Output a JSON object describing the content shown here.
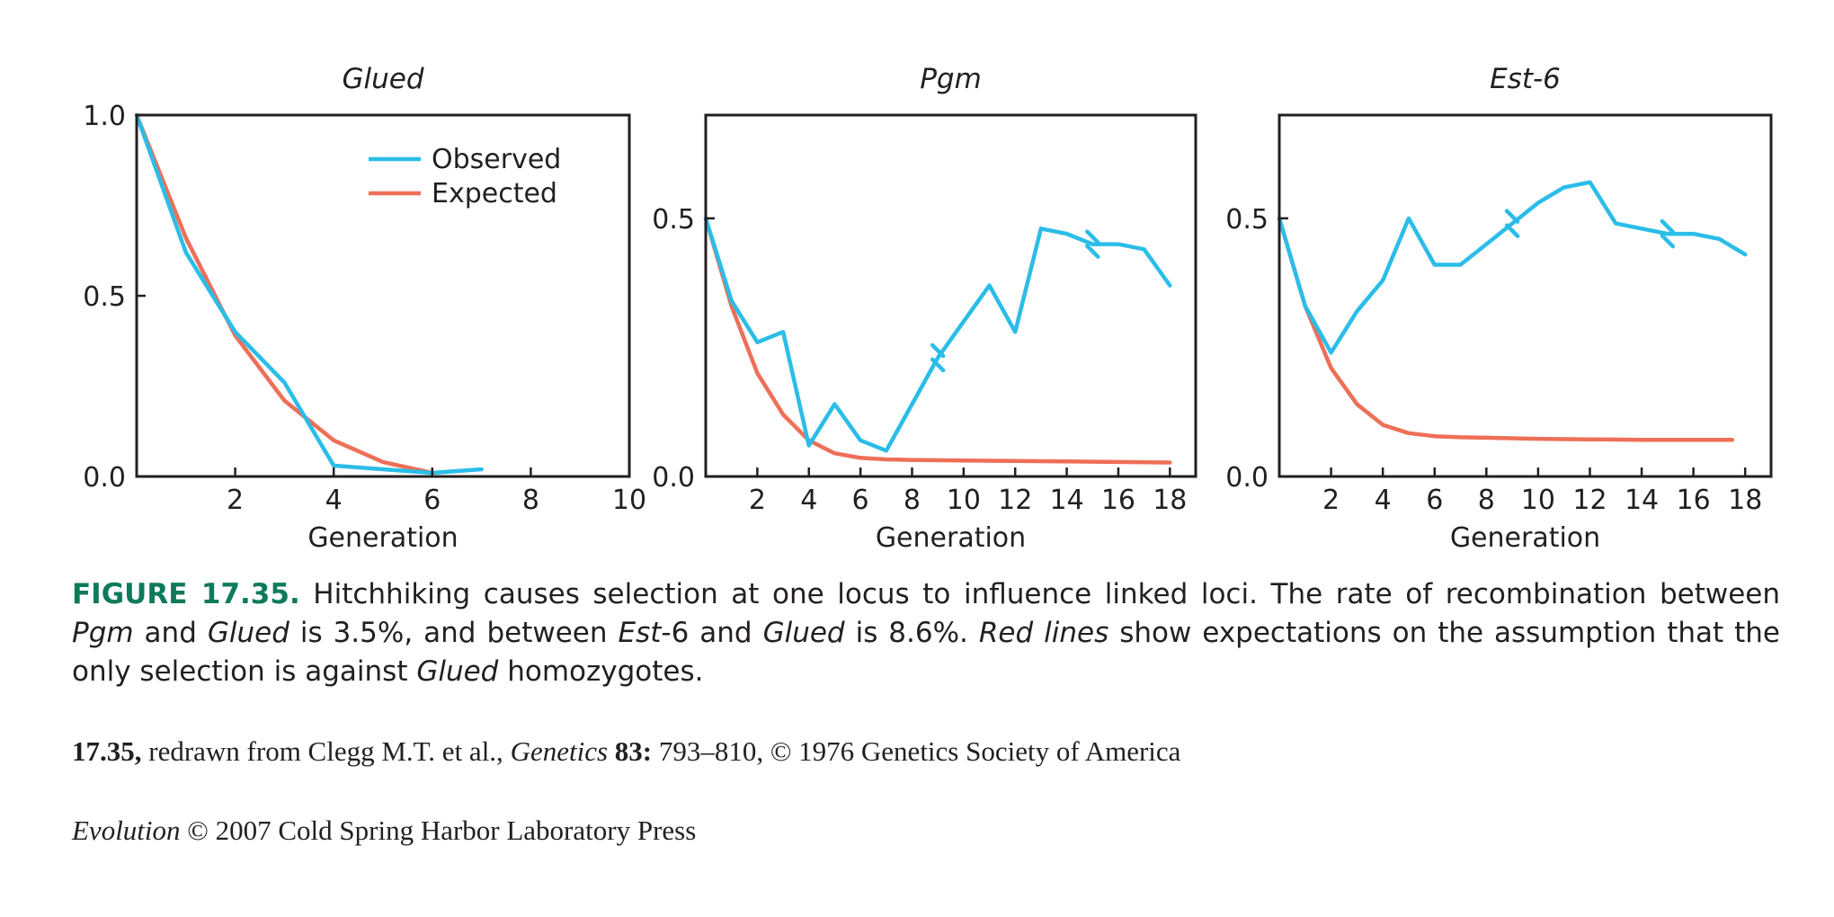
{
  "colors": {
    "observed": "#2bbde8",
    "expected": "#ee6f57",
    "frame": "#231f20",
    "caption_label": "#0e7a5c"
  },
  "legend": {
    "observed": "Observed",
    "expected": "Expected"
  },
  "chart_data": [
    {
      "type": "line",
      "title": "Glued",
      "xlabel": "Generation",
      "ylabel": "",
      "xlim": [
        0,
        10
      ],
      "ylim": [
        0,
        1.0
      ],
      "xticks": [
        2,
        4,
        6,
        8,
        10
      ],
      "yticks": [
        0.0,
        0.5,
        1.0
      ],
      "ytick_labels": [
        "0.0",
        "0.5",
        "1.0"
      ],
      "legend": "top-right",
      "series": [
        {
          "name": "Observed",
          "color": "#2bbde8",
          "x": [
            0,
            1,
            2,
            3,
            4,
            5,
            6,
            7
          ],
          "y": [
            1.0,
            0.62,
            0.4,
            0.26,
            0.03,
            0.02,
            0.01,
            0.02
          ]
        },
        {
          "name": "Expected",
          "color": "#ee6f57",
          "x": [
            0,
            1,
            2,
            3,
            4,
            5,
            6
          ],
          "y": [
            1.0,
            0.66,
            0.39,
            0.21,
            0.1,
            0.04,
            0.01
          ]
        }
      ]
    },
    {
      "type": "line",
      "title": "Pgm",
      "xlabel": "Generation",
      "ylabel": "",
      "xlim": [
        0,
        19
      ],
      "ylim": [
        0,
        0.7
      ],
      "xticks": [
        2,
        4,
        6,
        8,
        10,
        12,
        14,
        16,
        18
      ],
      "yticks": [
        0.0,
        0.5
      ],
      "ytick_labels": [
        "0.0",
        "0.5"
      ],
      "breaks": [
        9,
        15
      ],
      "series": [
        {
          "name": "Observed",
          "color": "#2bbde8",
          "x": [
            0,
            1,
            2,
            3,
            4,
            5,
            6,
            7,
            8,
            9,
            10,
            11,
            12,
            13,
            14,
            15,
            16,
            17,
            18
          ],
          "y": [
            0.5,
            0.34,
            0.26,
            0.28,
            0.06,
            0.14,
            0.07,
            0.05,
            0.14,
            0.23,
            0.3,
            0.37,
            0.28,
            0.48,
            0.47,
            0.45,
            0.45,
            0.44,
            0.37
          ]
        },
        {
          "name": "Expected",
          "color": "#ee6f57",
          "x": [
            0,
            1,
            2,
            3,
            4,
            5,
            6,
            7,
            8,
            10,
            12,
            14,
            16,
            18
          ],
          "y": [
            0.5,
            0.33,
            0.2,
            0.12,
            0.07,
            0.045,
            0.036,
            0.033,
            0.032,
            0.031,
            0.03,
            0.029,
            0.028,
            0.027
          ]
        }
      ]
    },
    {
      "type": "line",
      "title": "Est-6",
      "xlabel": "Generation",
      "ylabel": "",
      "xlim": [
        0,
        19
      ],
      "ylim": [
        0,
        0.7
      ],
      "xticks": [
        2,
        4,
        6,
        8,
        10,
        12,
        14,
        16,
        18
      ],
      "yticks": [
        0.0,
        0.5
      ],
      "ytick_labels": [
        "0.0",
        "0.5"
      ],
      "breaks": [
        9,
        15
      ],
      "series": [
        {
          "name": "Observed",
          "color": "#2bbde8",
          "x": [
            0,
            1,
            2,
            3,
            4,
            5,
            6,
            7,
            8,
            9,
            10,
            11,
            12,
            13,
            14,
            15,
            16,
            17,
            18
          ],
          "y": [
            0.5,
            0.33,
            0.24,
            0.32,
            0.38,
            0.5,
            0.41,
            0.41,
            0.45,
            0.49,
            0.53,
            0.56,
            0.57,
            0.49,
            0.48,
            0.47,
            0.47,
            0.46,
            0.43
          ]
        },
        {
          "name": "Expected",
          "color": "#ee6f57",
          "x": [
            0,
            1,
            2,
            3,
            4,
            5,
            6,
            7,
            8,
            10,
            12,
            14,
            16,
            17.5
          ],
          "y": [
            0.5,
            0.33,
            0.21,
            0.14,
            0.1,
            0.084,
            0.078,
            0.076,
            0.075,
            0.073,
            0.072,
            0.071,
            0.071,
            0.071
          ]
        }
      ]
    }
  ],
  "caption": {
    "label": "FIGURE 17.35.",
    "s1": " Hitchhiking causes selection at one locus to influence linked loci. The rate of recombination between ",
    "pgm": "Pgm",
    "s2": " and ",
    "glued1": "Glued",
    "s3": " is 3.5%, and between ",
    "est": "Est",
    "s4": "-6 and ",
    "glued2": "Glued",
    "s5": " is 8.6%. ",
    "redlines": "Red lines",
    "s6": " show expectations on the assumption that the only selection is against ",
    "glued3": "Glued",
    "s7": " homozygotes."
  },
  "credit": {
    "num": "17.35,",
    "t1": " redrawn from Clegg M.T. et al., ",
    "journal": "Genetics",
    "vol": " 83:",
    "t2": " 793–810, © 1976 Genetics Society of America"
  },
  "publisher": {
    "book": "Evolution",
    "rest": " © 2007 Cold Spring Harbor Laboratory Press"
  }
}
